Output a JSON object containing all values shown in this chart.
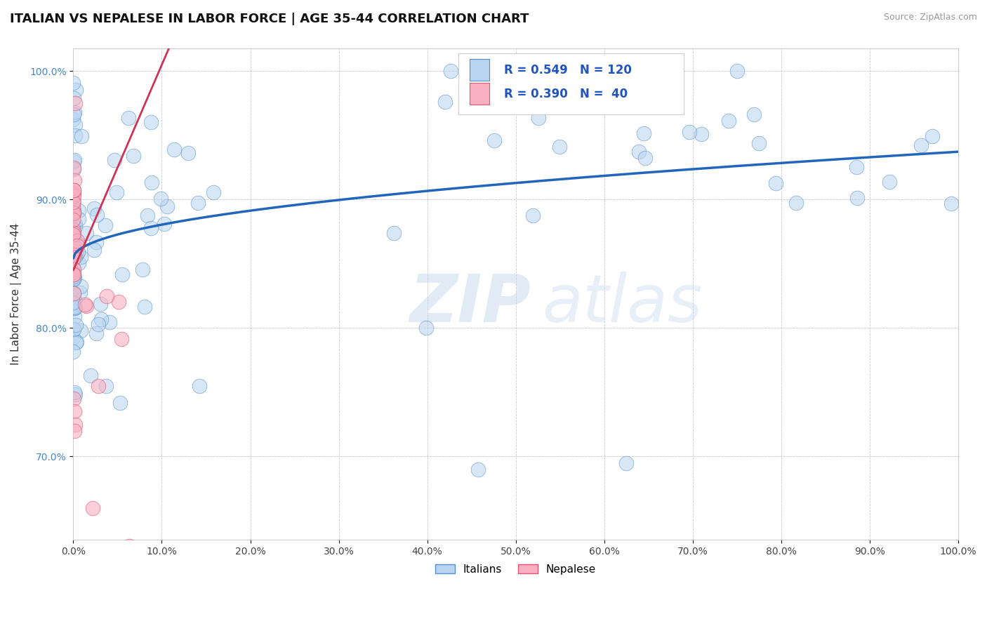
{
  "title": "ITALIAN VS NEPALESE IN LABOR FORCE | AGE 35-44 CORRELATION CHART",
  "source_text": "Source: ZipAtlas.com",
  "ylabel": "In Labor Force | Age 35-44",
  "xlim": [
    0,
    1.0
  ],
  "ylim": [
    0.635,
    1.018
  ],
  "yticks": [
    0.7,
    0.8,
    0.9,
    1.0
  ],
  "ytick_labels": [
    "70.0%",
    "80.0%",
    "90.0%",
    "100.0%"
  ],
  "xticks": [
    0.0,
    0.1,
    0.2,
    0.3,
    0.4,
    0.5,
    0.6,
    0.7,
    0.8,
    0.9,
    1.0
  ],
  "xtick_labels": [
    "0.0%",
    "10.0%",
    "20.0%",
    "30.0%",
    "40.0%",
    "50.0%",
    "60.0%",
    "70.0%",
    "80.0%",
    "90.0%",
    "100.0%"
  ],
  "italian_fill_color": "#b8d4f0",
  "italian_edge_color": "#5590cc",
  "nepalese_fill_color": "#f8b0c0",
  "nepalese_edge_color": "#e05575",
  "italian_line_color": "#2266bb",
  "nepalese_line_color": "#cc3355",
  "nepalese_line_dash": [
    6,
    3
  ],
  "R_italian": 0.549,
  "N_italian": 120,
  "R_nepalese": 0.39,
  "N_nepalese": 40,
  "legend_italian": "Italians",
  "legend_nepalese": "Nepalese",
  "background_color": "#ffffff",
  "watermark_zip": "ZIP",
  "watermark_atlas": "atlas",
  "title_fontsize": 13,
  "axis_label_fontsize": 11,
  "tick_fontsize": 10,
  "legend_fontsize": 12
}
